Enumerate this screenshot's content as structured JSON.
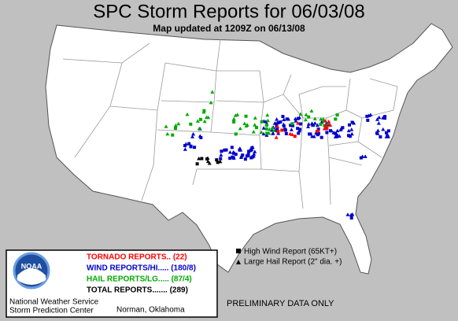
{
  "header": {
    "title": "SPC Storm Reports for 06/03/08",
    "subtitle": "Map updated at 1209Z on 06/13/08"
  },
  "legend": {
    "entries": [
      {
        "label": "TORNADO REPORTS.. (22)",
        "color": "#ff0000"
      },
      {
        "label": "WIND REPORTS/HI..... (180/8)",
        "color": "#0000cc"
      },
      {
        "label": "HAIL REPORTS/LG..... (87/4)",
        "color": "#00aa00"
      },
      {
        "label": "TOTAL REPORTS....... (289)",
        "color": "#000000"
      }
    ]
  },
  "key": [
    "High Wind Report (65KT+)",
    "Large Hail Report (2\" dia. +)"
  ],
  "notice": "PRELIMINARY DATA ONLY",
  "logo": "NOAA",
  "credit": {
    "line1": "National Weather Service",
    "line2": "Storm Prediction Center",
    "city": "Norman, Oklahoma"
  }
}
